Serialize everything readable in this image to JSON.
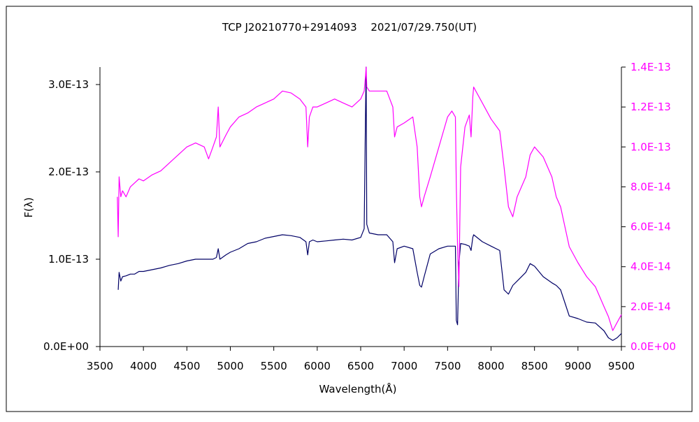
{
  "chart_data": {
    "type": "line",
    "title": "TCP J20210770+2914093　 2021/07/29.750(UT)",
    "xlabel": "Wavelength(Å)",
    "ylabel": "F(λ)",
    "xlim": [
      3500,
      9500
    ],
    "xticks": [
      3500,
      4000,
      4500,
      5000,
      5500,
      6000,
      6500,
      7000,
      7500,
      8000,
      8500,
      9000,
      9500
    ],
    "xtick_labels": [
      "3500",
      "4000",
      "4500",
      "5000",
      "5500",
      "6000",
      "6500",
      "7000",
      "7500",
      "8000",
      "8500",
      "9000",
      "9500"
    ],
    "y_left": {
      "lim": [
        0,
        3.2e-13
      ],
      "ticks": [
        0,
        1e-13,
        2e-13,
        3e-13
      ],
      "tick_labels": [
        "0.0E+00",
        "1.0E-13",
        "2.0E-13",
        "3.0E-13"
      ],
      "color": "#000000"
    },
    "y_right": {
      "lim": [
        0,
        1.4e-13
      ],
      "ticks": [
        0,
        2e-14,
        4e-14,
        6e-14,
        8e-14,
        1e-13,
        1.2e-13,
        1.4e-13
      ],
      "tick_labels": [
        "0.0E+00",
        "2.0E-14",
        "4.0E-14",
        "6.0E-14",
        "8.0E-14",
        "1.0E-13",
        "1.2E-13",
        "1.4E-13"
      ],
      "color": "#ff00ff"
    },
    "grid": false,
    "legend": "none",
    "series": [
      {
        "axis": "left",
        "color": "#000066",
        "x": [
          3710,
          3720,
          3740,
          3760,
          3800,
          3850,
          3900,
          3950,
          4000,
          4100,
          4200,
          4300,
          4400,
          4500,
          4600,
          4700,
          4800,
          4840,
          4861,
          4880,
          4950,
          5000,
          5100,
          5200,
          5300,
          5400,
          5500,
          5600,
          5700,
          5800,
          5870,
          5890,
          5910,
          5950,
          6000,
          6100,
          6200,
          6300,
          6400,
          6500,
          6540,
          6555,
          6563,
          6570,
          6600,
          6700,
          6800,
          6870,
          6890,
          6920,
          7000,
          7100,
          7150,
          7180,
          7200,
          7230,
          7300,
          7400,
          7500,
          7550,
          7590,
          7600,
          7615,
          7630,
          7650,
          7700,
          7750,
          7770,
          7790,
          7800,
          7900,
          8000,
          8100,
          8150,
          8200,
          8250,
          8300,
          8400,
          8450,
          8500,
          8600,
          8700,
          8750,
          8800,
          8850,
          8900,
          9000,
          9100,
          9200,
          9300,
          9350,
          9400,
          9450,
          9500
        ],
        "y": [
          6.5e-14,
          8.5e-14,
          7.5e-14,
          8e-14,
          8.1e-14,
          8.3e-14,
          8.3e-14,
          8.6e-14,
          8.6e-14,
          8.8e-14,
          9e-14,
          9.3e-14,
          9.5e-14,
          9.8e-14,
          1e-13,
          1e-13,
          1e-13,
          1.02e-13,
          1.12e-13,
          1e-13,
          1.05e-13,
          1.08e-13,
          1.12e-13,
          1.18e-13,
          1.2e-13,
          1.24e-13,
          1.26e-13,
          1.28e-13,
          1.27e-13,
          1.25e-13,
          1.2e-13,
          1.05e-13,
          1.2e-13,
          1.22e-13,
          1.2e-13,
          1.21e-13,
          1.22e-13,
          1.23e-13,
          1.22e-13,
          1.25e-13,
          1.35e-13,
          2.6e-13,
          3.2e-13,
          1.4e-13,
          1.3e-13,
          1.28e-13,
          1.28e-13,
          1.2e-13,
          9.6e-14,
          1.12e-13,
          1.15e-13,
          1.12e-13,
          8.5e-14,
          7e-14,
          6.8e-14,
          8e-14,
          1.06e-13,
          1.12e-13,
          1.15e-13,
          1.15e-13,
          1.15e-13,
          3e-14,
          2.5e-14,
          9.5e-14,
          1.18e-13,
          1.17e-13,
          1.15e-13,
          1.1e-13,
          1.25e-13,
          1.28e-13,
          1.2e-13,
          1.15e-13,
          1.1e-13,
          6.5e-14,
          6e-14,
          7e-14,
          7.5e-14,
          8.5e-14,
          9.5e-14,
          9.2e-14,
          8e-14,
          7.3e-14,
          7e-14,
          6.5e-14,
          5e-14,
          3.5e-14,
          3.2e-14,
          2.8e-14,
          2.7e-14,
          1.8e-14,
          1e-14,
          7e-15,
          1e-14,
          1.5e-14
        ]
      },
      {
        "axis": "right",
        "color": "#ff00ff",
        "x": [
          3700,
          3710,
          3720,
          3740,
          3760,
          3800,
          3850,
          3900,
          3950,
          4000,
          4100,
          4200,
          4300,
          4400,
          4500,
          4600,
          4700,
          4750,
          4800,
          4840,
          4861,
          4880,
          4950,
          5000,
          5100,
          5200,
          5300,
          5400,
          5500,
          5600,
          5700,
          5800,
          5870,
          5890,
          5910,
          5950,
          6000,
          6100,
          6200,
          6300,
          6400,
          6500,
          6540,
          6555,
          6563,
          6570,
          6600,
          6700,
          6800,
          6870,
          6890,
          6920,
          7000,
          7100,
          7150,
          7180,
          7200,
          7230,
          7300,
          7400,
          7500,
          7550,
          7590,
          7600,
          7615,
          7630,
          7650,
          7700,
          7750,
          7770,
          7790,
          7800,
          7900,
          8000,
          8100,
          8150,
          8200,
          8250,
          8300,
          8400,
          8450,
          8500,
          8600,
          8700,
          8750,
          8800,
          8850,
          8900,
          9000,
          9100,
          9200,
          9300,
          9350,
          9400,
          9450,
          9500
        ],
        "y": [
          7.5e-14,
          5.5e-14,
          8.5e-14,
          7.5e-14,
          7.8e-14,
          7.5e-14,
          8e-14,
          8.2e-14,
          8.4e-14,
          8.3e-14,
          8.6e-14,
          8.8e-14,
          9.2e-14,
          9.6e-14,
          1e-13,
          1.02e-13,
          1e-13,
          9.4e-14,
          1e-13,
          1.05e-13,
          1.2e-13,
          1e-13,
          1.06e-13,
          1.1e-13,
          1.15e-13,
          1.17e-13,
          1.2e-13,
          1.22e-13,
          1.24e-13,
          1.28e-13,
          1.27e-13,
          1.24e-13,
          1.2e-13,
          1e-13,
          1.15e-13,
          1.2e-13,
          1.2e-13,
          1.22e-13,
          1.24e-13,
          1.22e-13,
          1.2e-13,
          1.24e-13,
          1.28e-13,
          1.35e-13,
          1.4e-13,
          1.3e-13,
          1.28e-13,
          1.28e-13,
          1.28e-13,
          1.2e-13,
          1.05e-13,
          1.1e-13,
          1.12e-13,
          1.15e-13,
          1e-13,
          7.5e-14,
          7e-14,
          7.5e-14,
          8.5e-14,
          1e-13,
          1.15e-13,
          1.18e-13,
          1.15e-13,
          8e-14,
          5e-14,
          3e-14,
          9e-14,
          1.1e-13,
          1.16e-13,
          1.05e-13,
          1.25e-13,
          1.3e-13,
          1.22e-13,
          1.14e-13,
          1.08e-13,
          9e-14,
          7e-14,
          6.5e-14,
          7.5e-14,
          8.5e-14,
          9.6e-14,
          1e-13,
          9.5e-14,
          8.5e-14,
          7.5e-14,
          7e-14,
          6e-14,
          5e-14,
          4.2e-14,
          3.5e-14,
          3e-14,
          2e-14,
          1.5e-14,
          8e-15,
          1.2e-14,
          1.6e-14
        ]
      }
    ]
  }
}
